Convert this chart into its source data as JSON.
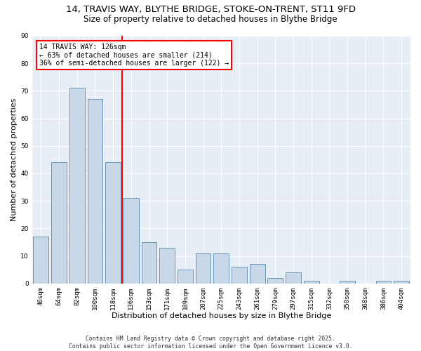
{
  "title1": "14, TRAVIS WAY, BLYTHE BRIDGE, STOKE-ON-TRENT, ST11 9FD",
  "title2": "Size of property relative to detached houses in Blythe Bridge",
  "xlabel": "Distribution of detached houses by size in Blythe Bridge",
  "ylabel": "Number of detached properties",
  "categories": [
    "46sqm",
    "64sqm",
    "82sqm",
    "100sqm",
    "118sqm",
    "136sqm",
    "153sqm",
    "171sqm",
    "189sqm",
    "207sqm",
    "225sqm",
    "243sqm",
    "261sqm",
    "279sqm",
    "297sqm",
    "315sqm",
    "332sqm",
    "350sqm",
    "368sqm",
    "386sqm",
    "404sqm"
  ],
  "values": [
    17,
    44,
    71,
    67,
    44,
    31,
    15,
    13,
    5,
    11,
    11,
    6,
    7,
    2,
    4,
    1,
    0,
    1,
    0,
    1,
    1
  ],
  "bar_color": "#c8d8e8",
  "bar_edge_color": "#5a8ab0",
  "vline_color": "red",
  "annotation_text": "14 TRAVIS WAY: 126sqm\n← 63% of detached houses are smaller (214)\n36% of semi-detached houses are larger (122) →",
  "annotation_box_color": "white",
  "annotation_box_edge": "red",
  "ylim": [
    0,
    90
  ],
  "yticks": [
    0,
    10,
    20,
    30,
    40,
    50,
    60,
    70,
    80,
    90
  ],
  "bg_color": "#e8eef5",
  "footer": "Contains HM Land Registry data © Crown copyright and database right 2025.\nContains public sector information licensed under the Open Government Licence v3.0.",
  "title_fontsize": 9.5,
  "subtitle_fontsize": 8.5,
  "tick_fontsize": 6.5,
  "label_fontsize": 8,
  "footer_fontsize": 5.8,
  "annotation_fontsize": 7,
  "vline_x": 4.5
}
